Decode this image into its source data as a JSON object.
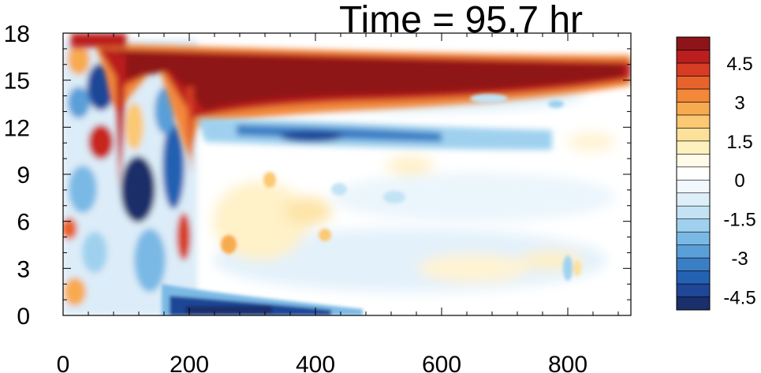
{
  "chart_data": {
    "type": "heatmap",
    "title": "Time = 95.7 hr",
    "xlabel": "",
    "ylabel": "",
    "xlim": [
      0,
      900
    ],
    "ylim": [
      0,
      18
    ],
    "x_ticks": [
      "0",
      "200",
      "400",
      "600",
      "800"
    ],
    "x_tick_values": [
      0,
      200,
      400,
      600,
      800
    ],
    "y_ticks": [
      "0",
      "3",
      "6",
      "9",
      "12",
      "15",
      "18"
    ],
    "y_tick_values": [
      0,
      3,
      6,
      9,
      12,
      15,
      18
    ],
    "colorbar": {
      "levels": [
        -5.0,
        -4.5,
        -4.0,
        -3.5,
        -3.0,
        -2.5,
        -2.0,
        -1.5,
        -1.0,
        -0.5,
        0,
        0.5,
        1.0,
        1.5,
        2.0,
        2.5,
        3.0,
        3.5,
        4.0,
        4.5,
        5.0
      ],
      "labels": [
        "4.5",
        "3",
        "1.5",
        "0",
        "-1.5",
        "-3",
        "-4.5"
      ],
      "label_values": [
        4.5,
        3,
        1.5,
        0,
        -1.5,
        -3,
        -4.5
      ],
      "colors_low_to_high": [
        "#1a2f6b",
        "#1f4697",
        "#2461b2",
        "#3a7fc6",
        "#5a9fd8",
        "#7ab9e5",
        "#9fd1ef",
        "#c3e3f5",
        "#deeffa",
        "#f2f8fd",
        "#ffffff",
        "#fffbe8",
        "#fff0bf",
        "#fde19a",
        "#fbc873",
        "#f8aa50",
        "#f3873a",
        "#e8622c",
        "#d63c23",
        "#bb1e1e",
        "#8e1419"
      ]
    },
    "features": [
      {
        "desc": "strong positive band",
        "x": [
          100,
          900
        ],
        "y": [
          13.5,
          17
        ],
        "value": 5.0
      },
      {
        "desc": "negative band below positive band",
        "x": [
          250,
          700
        ],
        "y": [
          11,
          12.5
        ],
        "value": -3.5
      },
      {
        "desc": "negative layer near surface",
        "x": [
          200,
          450
        ],
        "y": [
          0,
          1
        ],
        "value": -4.5
      },
      {
        "desc": "mixed anomalies in convective region",
        "x": [
          0,
          250
        ],
        "y": [
          0,
          17
        ],
        "value": "mixed"
      }
    ]
  }
}
